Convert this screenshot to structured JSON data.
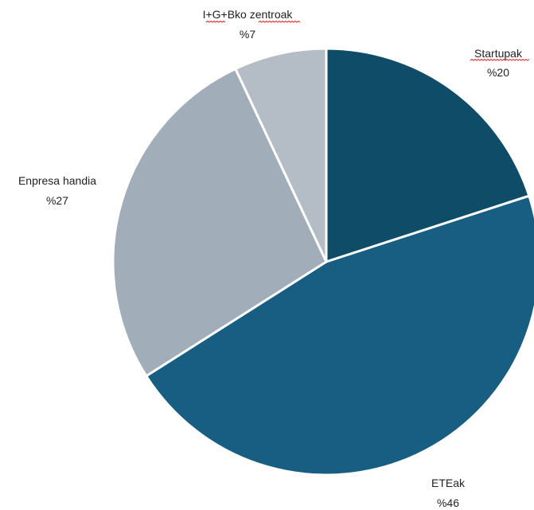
{
  "chart_data": {
    "type": "pie",
    "start_angle_deg": 0,
    "direction": "clockwise",
    "slices": [
      {
        "label": "Startupak",
        "value_label": "%20",
        "value": 20,
        "color": "#0f4c68"
      },
      {
        "label": "ETEak",
        "value_label": "%46",
        "value": 46,
        "color": "#175e82"
      },
      {
        "label": "Enpresa handia",
        "value_label": "%27",
        "value": 27,
        "color": "#a1adb8"
      },
      {
        "label": "I+G+Bko zentroak",
        "value_label": "%7",
        "value": 7,
        "color": "#b4bdc6"
      }
    ],
    "slice_border_color": "#ffffff"
  }
}
